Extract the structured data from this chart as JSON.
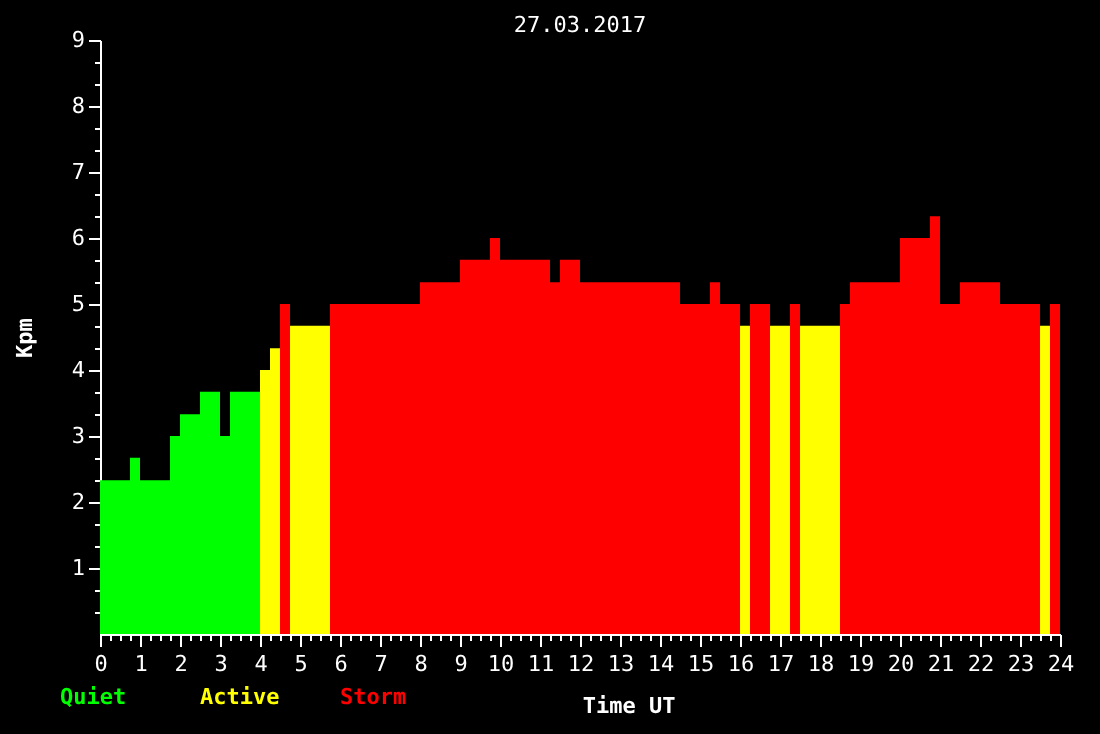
{
  "chart_data": {
    "type": "histogram",
    "title": "27.03.2017",
    "xlabel": "Time UT",
    "ylabel": "Kpm",
    "legend": "bottom left",
    "xlim": [
      0,
      24
    ],
    "ylim": [
      0,
      9
    ],
    "bins": [
      0,
      0.75,
      1,
      1.75,
      2,
      2.5,
      3,
      3.25,
      4,
      4.25,
      4.5,
      4.75,
      5.75,
      8,
      9,
      9.75,
      10,
      11.25,
      11.5,
      12,
      14.5,
      15.25,
      15.5,
      16,
      16.25,
      16.75,
      17.25,
      17.5,
      18.5,
      18.75,
      20,
      20.75,
      21,
      21.5,
      22.5,
      23.5,
      23.75,
      24
    ],
    "xticks": [
      0,
      {
        "value": 0.25,
        "label": null
      },
      {
        "value": 0.5,
        "label": null
      },
      {
        "value": 0.75,
        "label": null
      },
      1,
      {
        "value": 1.25,
        "label": null
      },
      {
        "value": 1.5,
        "label": null
      },
      {
        "value": 1.75,
        "label": null
      },
      2,
      {
        "value": 2.25,
        "label": null
      },
      {
        "value": 2.5,
        "label": null
      },
      {
        "value": 2.75,
        "label": null
      },
      3,
      {
        "value": 3.25,
        "label": null
      },
      {
        "value": 3.5,
        "label": null
      },
      {
        "value": 3.75,
        "label": null
      },
      4,
      {
        "value": 4.25,
        "label": null
      },
      {
        "value": 4.5,
        "label": null
      },
      {
        "value": 4.75,
        "label": null
      },
      5,
      {
        "value": 5.25,
        "label": null
      },
      {
        "value": 5.5,
        "label": null
      },
      {
        "value": 5.75,
        "label": null
      },
      6,
      {
        "value": 6.25,
        "label": null
      },
      {
        "value": 6.5,
        "label": null
      },
      {
        "value": 6.75,
        "label": null
      },
      7,
      {
        "value": 7.25,
        "label": null
      },
      {
        "value": 7.5,
        "label": null
      },
      {
        "value": 7.75,
        "label": null
      },
      8,
      {
        "value": 8.25,
        "label": null
      },
      {
        "value": 8.5,
        "label": null
      },
      {
        "value": 8.75,
        "label": null
      },
      9,
      {
        "value": 9.25,
        "label": null
      },
      {
        "value": 9.5,
        "label": null
      },
      {
        "value": 9.75,
        "label": null
      },
      10,
      {
        "value": 10.25,
        "label": null
      },
      {
        "value": 10.5,
        "label": null
      },
      {
        "value": 10.75,
        "label": null
      },
      11,
      {
        "value": 11.25,
        "label": null
      },
      {
        "value": 11.5,
        "label": null
      },
      {
        "value": 11.75,
        "label": null
      },
      12,
      {
        "value": 12.25,
        "label": null
      },
      {
        "value": 12.5,
        "label": null
      },
      {
        "value": 12.75,
        "label": null
      },
      13,
      {
        "value": 13.25,
        "label": null
      },
      {
        "value": 13.5,
        "label": null
      },
      {
        "value": 13.75,
        "label": null
      },
      14,
      {
        "value": 14.25,
        "label": null
      },
      {
        "value": 14.5,
        "label": null
      },
      {
        "value": 14.75,
        "label": null
      },
      15,
      {
        "value": 15.25,
        "label": null
      },
      {
        "value": 15.5,
        "label": null
      },
      {
        "value": 15.75,
        "label": null
      },
      16,
      {
        "value": 16.25,
        "label": null
      },
      {
        "value": 16.5,
        "label": null
      },
      {
        "value": 16.75,
        "label": null
      },
      17,
      {
        "value": 17.25,
        "label": null
      },
      {
        "value": 17.5,
        "label": null
      },
      {
        "value": 17.75,
        "label": null
      },
      18,
      {
        "value": 18.25,
        "label": null
      },
      {
        "value": 18.5,
        "label": null
      },
      {
        "value": 18.75,
        "label": null
      },
      19,
      {
        "value": 19.25,
        "label": null
      },
      {
        "value": 19.5,
        "label": null
      },
      {
        "value": 19.75,
        "label": null
      },
      20,
      {
        "value": 20.25,
        "label": null
      },
      {
        "value": 20.5,
        "label": null
      },
      {
        "value": 20.75,
        "label": null
      },
      21,
      {
        "value": 21.25,
        "label": null
      },
      {
        "value": 21.5,
        "label": null
      },
      {
        "value": 21.75,
        "label": null
      },
      22,
      {
        "value": 22.25,
        "label": null
      },
      {
        "value": 22.5,
        "label": null
      },
      {
        "value": 22.75,
        "label": null
      },
      23,
      {
        "value": 23.25,
        "label": null
      },
      {
        "value": 23.5,
        "label": null
      },
      {
        "value": 23.75,
        "label": null
      },
      24
    ],
    "yticks": [
      {
        "value": 0.33,
        "label": null
      },
      {
        "value": 0.67,
        "label": null
      },
      1,
      {
        "value": 1.33,
        "label": null
      },
      {
        "value": 1.67,
        "label": null
      },
      2,
      {
        "value": 2.33,
        "label": null
      },
      {
        "value": 2.67,
        "label": null
      },
      3,
      {
        "value": 3.33,
        "label": null
      },
      {
        "value": 3.67,
        "label": null
      },
      4,
      {
        "value": 4.33,
        "label": null
      },
      {
        "value": 4.67,
        "label": null
      },
      5,
      {
        "value": 5.33,
        "label": null
      },
      {
        "value": 5.67,
        "label": null
      },
      6,
      {
        "value": 6.33,
        "label": null
      },
      {
        "value": 6.67,
        "label": null
      },
      7,
      {
        "value": 7.33,
        "label": null
      },
      {
        "value": 7.67,
        "label": null
      },
      8,
      {
        "value": 8.33,
        "label": null
      },
      {
        "value": 8.67,
        "label": null
      },
      9
    ],
    "series": [
      {
        "name": "Quiet",
        "color": "#00ff00",
        "values": [
          2.33,
          2.67,
          2.33,
          3,
          3.33,
          3.67,
          3,
          3.67,
          null,
          null,
          null,
          null,
          null,
          null,
          null,
          null,
          null,
          null,
          null,
          null,
          null,
          null,
          null,
          null,
          null,
          null,
          null,
          null,
          null,
          null,
          null,
          null,
          null,
          null,
          null,
          null,
          null
        ]
      },
      {
        "name": "Active",
        "color": "#ffff00",
        "values": [
          null,
          null,
          null,
          null,
          null,
          null,
          null,
          null,
          4,
          4.33,
          null,
          4.67,
          null,
          null,
          null,
          null,
          null,
          null,
          null,
          null,
          null,
          null,
          null,
          4.67,
          null,
          4.67,
          null,
          4.67,
          null,
          null,
          null,
          null,
          null,
          null,
          null,
          4.67,
          null
        ]
      },
      {
        "name": "Storm",
        "color": "#ff0000",
        "values": [
          null,
          null,
          null,
          null,
          null,
          null,
          null,
          null,
          null,
          null,
          5,
          null,
          5,
          5.33,
          5.67,
          6,
          5.67,
          5.33,
          5.67,
          5.33,
          5,
          5.33,
          5,
          null,
          5,
          null,
          5,
          null,
          5,
          5.33,
          6,
          6.33,
          5,
          5.33,
          5,
          null,
          5
        ]
      }
    ]
  }
}
